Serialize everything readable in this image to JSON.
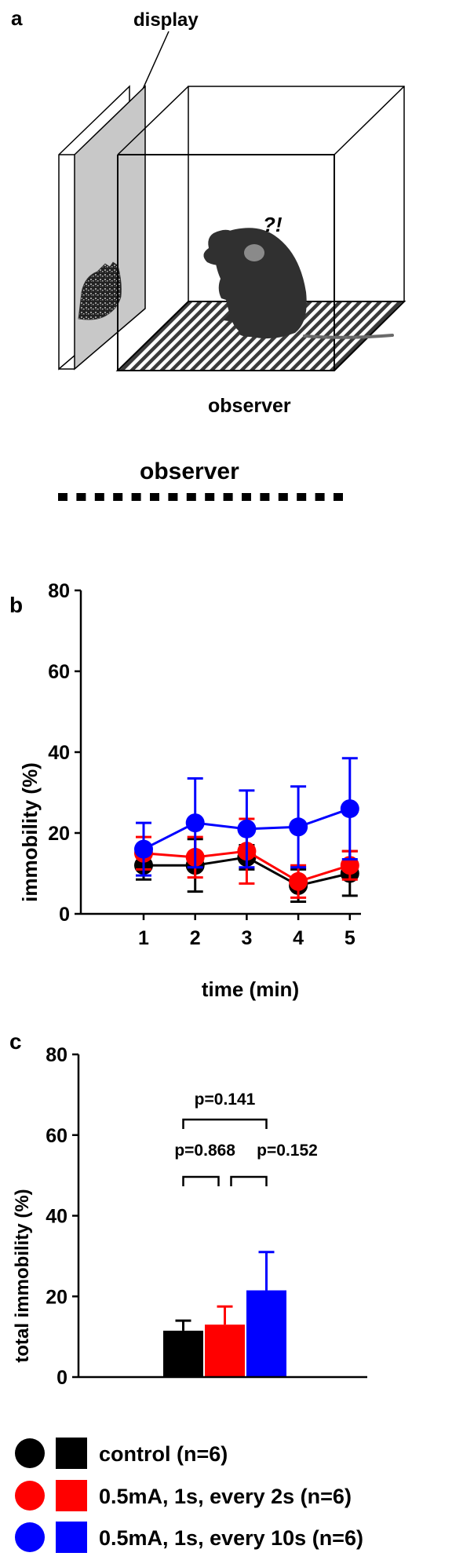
{
  "panels": {
    "a": {
      "letter": "a",
      "display_label": "display",
      "observer_label": "observer",
      "mark": "?!",
      "dotted_label": "observer"
    },
    "b": {
      "letter": "b"
    },
    "c": {
      "letter": "c"
    }
  },
  "colors": {
    "control": "#000000",
    "shock2s": "#ff0000",
    "shock10s": "#0000ff"
  },
  "legend": [
    {
      "label": "control (n=6)",
      "color": "#000000"
    },
    {
      "label": "0.5mA, 1s, every 2s (n=6)",
      "color": "#ff0000"
    },
    {
      "label": "0.5mA, 1s, every 10s (n=6)",
      "color": "#0000ff"
    }
  ],
  "chart_data": [
    {
      "type": "line",
      "title": "",
      "xlabel": "time (min)",
      "ylabel": "immobility (%)",
      "x": [
        1,
        2,
        3,
        4,
        5
      ],
      "ylim": [
        0,
        80
      ],
      "yticks": [
        0,
        20,
        40,
        60,
        80
      ],
      "grid": false,
      "series": [
        {
          "name": "control (n=6)",
          "color": "#000000",
          "values": [
            12,
            12,
            14,
            7,
            10
          ],
          "errors": [
            3.5,
            6.5,
            3,
            4,
            5.5
          ]
        },
        {
          "name": "0.5mA, 1s, every 2s (n=6)",
          "color": "#ff0000",
          "values": [
            15,
            14,
            15.5,
            8,
            12
          ],
          "errors": [
            4,
            5,
            8,
            4,
            3.5
          ]
        },
        {
          "name": "0.5mA, 1s, every 10s (n=6)",
          "color": "#0000ff",
          "values": [
            16,
            22.5,
            21,
            21.5,
            26
          ],
          "errors": [
            6.5,
            11,
            9.5,
            10,
            12.5
          ]
        }
      ]
    },
    {
      "type": "bar",
      "title": "",
      "xlabel": "",
      "ylabel": "total immobility (%)",
      "categories": [
        "control (n=6)",
        "0.5mA, 1s, every 2s (n=6)",
        "0.5mA, 1s, every 10s (n=6)"
      ],
      "values": [
        11.5,
        13,
        21.5
      ],
      "errors": [
        2.5,
        4.5,
        9.5
      ],
      "colors": [
        "#000000",
        "#ff0000",
        "#0000ff"
      ],
      "ylim": [
        0,
        80
      ],
      "yticks": [
        0,
        20,
        40,
        60,
        80
      ],
      "grid": false,
      "annotations": [
        {
          "text": "p=0.141",
          "from": 0,
          "to": 2
        },
        {
          "text": "p=0.868",
          "from": 0,
          "to": 1
        },
        {
          "text": "p=0.152",
          "from": 1,
          "to": 2
        }
      ]
    }
  ]
}
